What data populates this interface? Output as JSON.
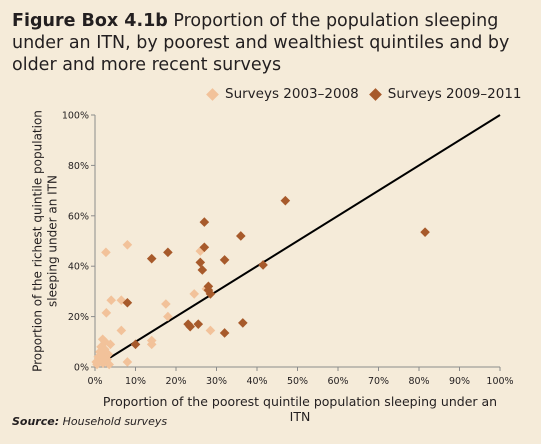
{
  "title": {
    "lead": "Figure Box 4.1b",
    "text": " Proportion of the population sleeping under an ITN, by poorest and wealthiest quintiles and by older and more recent surveys"
  },
  "source": {
    "label": "Source:",
    "text": " Household surveys"
  },
  "colors": {
    "background": "#f5ebd9",
    "series_older": "#f2c29a",
    "series_recent": "#a75a2b",
    "diagonal": "#000000",
    "axis": "#8c8c8c"
  },
  "chart_data": {
    "type": "scatter",
    "xlabel": "Proportion of the poorest quintile population sleeping under an ITN",
    "ylabel": "Proportion of the richest quintile population sleeping under an ITN",
    "xlim": [
      0,
      100
    ],
    "ylim": [
      0,
      100
    ],
    "xticks": [
      "0%",
      "10%",
      "20%",
      "30%",
      "40%",
      "50%",
      "60%",
      "70%",
      "80%",
      "90%",
      "100%"
    ],
    "yticks": [
      "0%",
      "20%",
      "40%",
      "60%",
      "80%",
      "100%"
    ],
    "reference_line": {
      "from": [
        0,
        0
      ],
      "to": [
        100,
        100
      ]
    },
    "legend_position": "top-right",
    "series": [
      {
        "name": "Surveys 2003–2008",
        "color": "#f2c29a",
        "marker": "diamond",
        "points": [
          [
            0.3,
            2
          ],
          [
            0.5,
            1
          ],
          [
            0.8,
            4
          ],
          [
            1,
            2.5
          ],
          [
            1.2,
            6
          ],
          [
            1.4,
            3
          ],
          [
            1.5,
            8
          ],
          [
            1.7,
            5
          ],
          [
            1.9,
            11
          ],
          [
            2,
            1.5
          ],
          [
            2.2,
            4
          ],
          [
            2.4,
            7
          ],
          [
            2.5,
            10
          ],
          [
            2.7,
            45.5
          ],
          [
            2.8,
            21.5
          ],
          [
            3,
            3
          ],
          [
            3.3,
            5
          ],
          [
            3.5,
            1
          ],
          [
            3.8,
            9
          ],
          [
            4,
            26.5
          ],
          [
            6.5,
            26.5
          ],
          [
            6.5,
            14.5
          ],
          [
            8,
            48.5
          ],
          [
            8,
            2
          ],
          [
            14,
            9
          ],
          [
            14,
            10.5
          ],
          [
            17.5,
            25
          ],
          [
            18,
            20
          ],
          [
            24.5,
            29
          ],
          [
            26,
            46
          ],
          [
            27.5,
            31
          ],
          [
            28.5,
            14.5
          ]
        ]
      },
      {
        "name": "Surveys 2009–2011",
        "color": "#a75a2b",
        "marker": "diamond",
        "points": [
          [
            8,
            25.5
          ],
          [
            10,
            9
          ],
          [
            14,
            43
          ],
          [
            18,
            45.5
          ],
          [
            23,
            17
          ],
          [
            23.5,
            16
          ],
          [
            25.5,
            17
          ],
          [
            26,
            41.5
          ],
          [
            26.5,
            38.5
          ],
          [
            27,
            47.5
          ],
          [
            27,
            57.5
          ],
          [
            28,
            32
          ],
          [
            28,
            30.5
          ],
          [
            28.5,
            29
          ],
          [
            32,
            13.5
          ],
          [
            32,
            42.5
          ],
          [
            36,
            52
          ],
          [
            36.5,
            17.5
          ],
          [
            41.5,
            40.5
          ],
          [
            47,
            66
          ],
          [
            81.5,
            53.5
          ]
        ]
      }
    ]
  }
}
